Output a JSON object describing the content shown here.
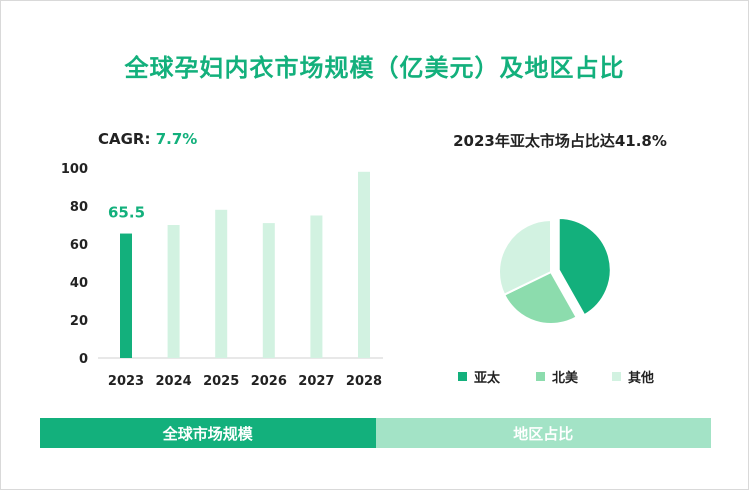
{
  "title": "全球孕妇内衣市场规模（亿美元）及地区占比",
  "cagr": {
    "label": "CAGR:",
    "value": "7.7%"
  },
  "pie_title": "2023年亚太市场占比达41.8%",
  "tabs": [
    "全球市场规模",
    "地区占比"
  ],
  "colors": {
    "primary": "#13b07c",
    "medium": "#8cdcad",
    "light": "#d2f2e1"
  },
  "chart_data": [
    {
      "type": "bar",
      "categories": [
        "2023",
        "2024",
        "2025",
        "2026",
        "2027",
        "2028"
      ],
      "values": [
        65.5,
        70,
        78,
        71,
        75,
        98
      ],
      "highlight_index": 0,
      "data_labels": [
        "65.5",
        "",
        "",
        "",
        "",
        ""
      ],
      "ylim": [
        0,
        100
      ],
      "yticks": [
        0,
        20,
        40,
        60,
        80,
        100
      ],
      "grid": false,
      "xlabel": "",
      "ylabel": ""
    },
    {
      "type": "pie",
      "labels": [
        "亚太",
        "北美",
        "其他"
      ],
      "values": [
        41.8,
        26,
        32.2
      ],
      "colors": [
        "#13b07c",
        "#8cdcad",
        "#d2f2e1"
      ],
      "exploded_index": 0,
      "legend": "bottom"
    }
  ]
}
